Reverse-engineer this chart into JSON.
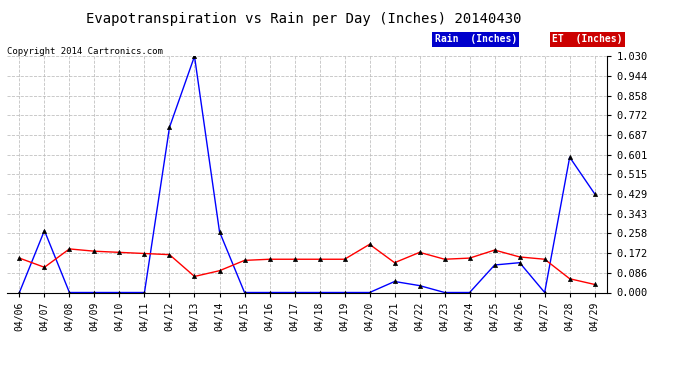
{
  "title": "Evapotranspiration vs Rain per Day (Inches) 20140430",
  "copyright": "Copyright 2014 Cartronics.com",
  "x_labels": [
    "04/06",
    "04/07",
    "04/08",
    "04/09",
    "04/10",
    "04/11",
    "04/12",
    "04/13",
    "04/14",
    "04/15",
    "04/16",
    "04/17",
    "04/18",
    "04/19",
    "04/20",
    "04/21",
    "04/22",
    "04/23",
    "04/24",
    "04/25",
    "04/26",
    "04/27",
    "04/28",
    "04/29"
  ],
  "rain_data": [
    0.0,
    0.27,
    0.0,
    0.0,
    0.0,
    0.0,
    0.72,
    1.03,
    0.265,
    0.0,
    0.0,
    0.0,
    0.0,
    0.0,
    0.0,
    0.048,
    0.03,
    0.0,
    0.0,
    0.12,
    0.13,
    0.0,
    0.59,
    0.43
  ],
  "et_data": [
    0.15,
    0.11,
    0.19,
    0.18,
    0.175,
    0.17,
    0.165,
    0.07,
    0.095,
    0.14,
    0.145,
    0.145,
    0.145,
    0.145,
    0.21,
    0.13,
    0.175,
    0.145,
    0.15,
    0.185,
    0.155,
    0.145,
    0.06,
    0.035
  ],
  "rain_color": "#0000ff",
  "et_color": "#ff0000",
  "ylim": [
    0.0,
    1.03
  ],
  "yticks": [
    0.0,
    0.086,
    0.172,
    0.258,
    0.343,
    0.429,
    0.515,
    0.601,
    0.687,
    0.772,
    0.858,
    0.944,
    1.03
  ],
  "background_color": "#ffffff",
  "grid_color": "#bbbbbb",
  "legend_rain_label": "Rain  (Inches)",
  "legend_et_label": "ET  (Inches)",
  "legend_rain_bg": "#0000cc",
  "legend_et_bg": "#cc0000",
  "title_fontsize": 10,
  "tick_fontsize": 7,
  "ytick_fontsize": 7.5,
  "copyright_fontsize": 6.5
}
